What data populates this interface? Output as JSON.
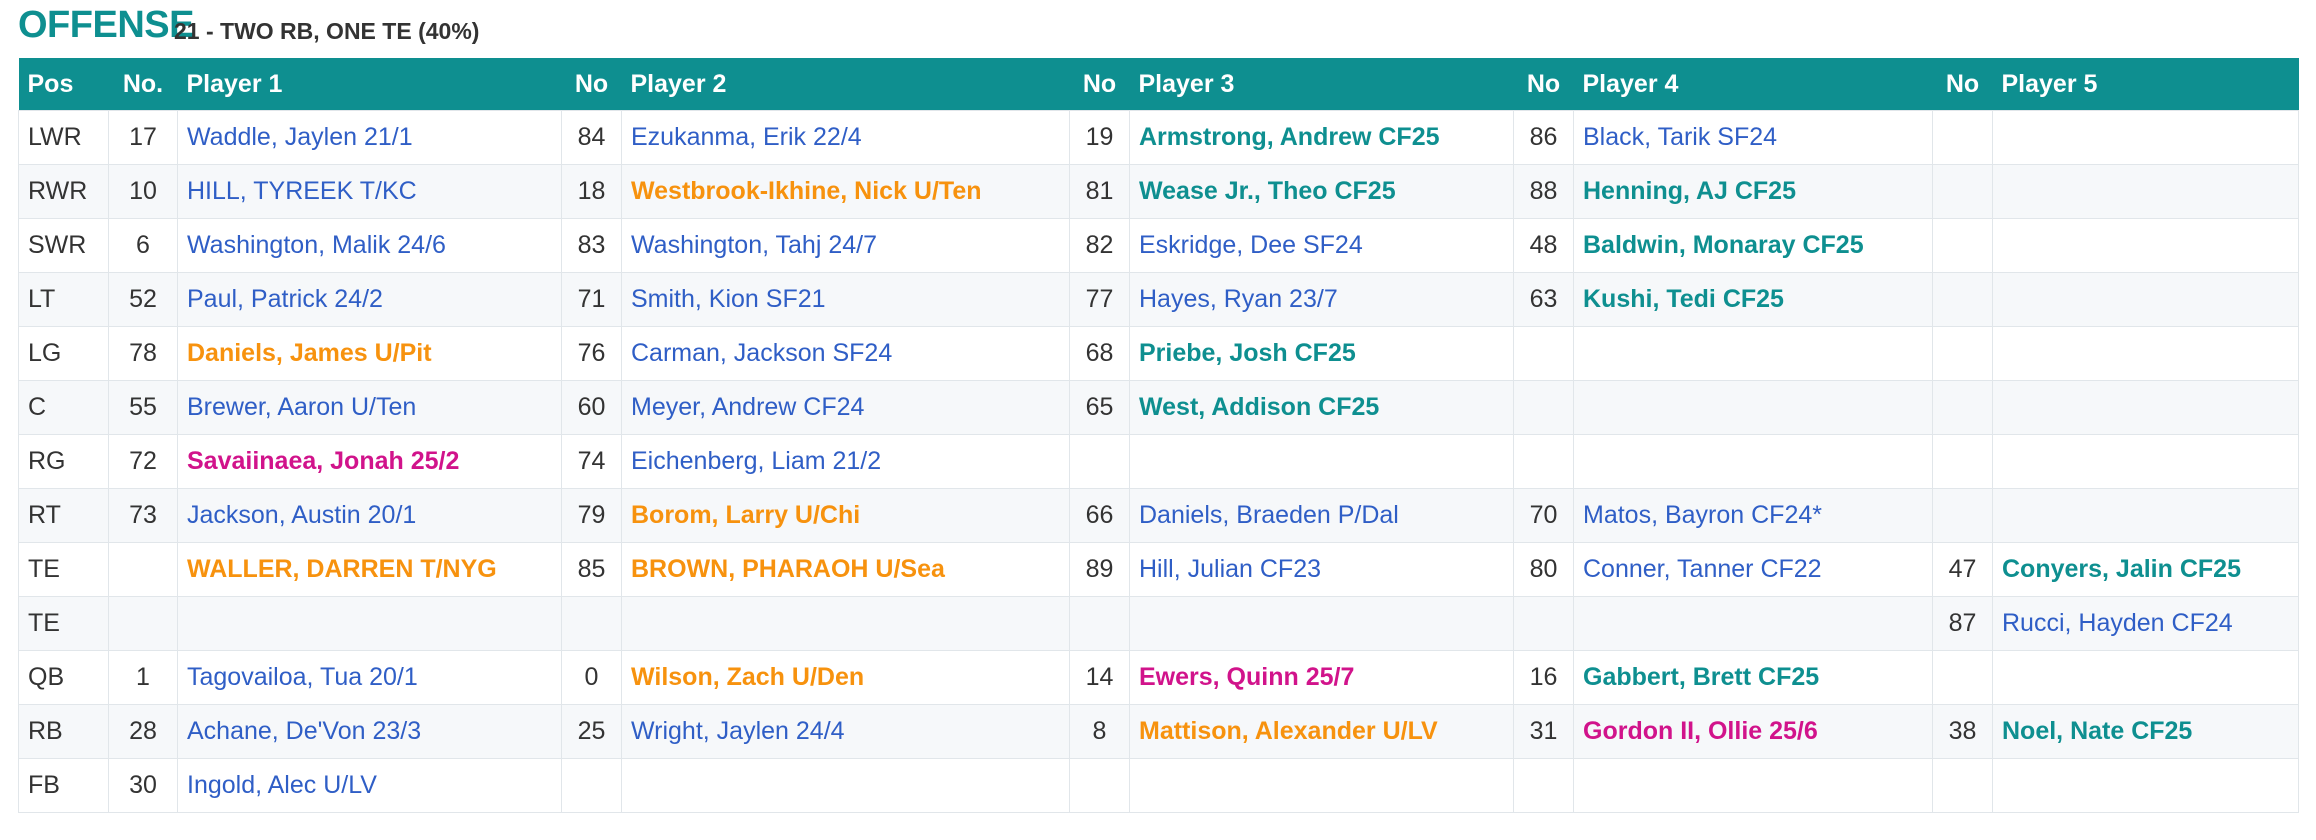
{
  "header": {
    "title": "OFFENSE",
    "formation": "21 - TWO RB, ONE TE (40%)"
  },
  "columns": [
    "Pos",
    "No.",
    "Player 1",
    "No",
    "Player 2",
    "No",
    "Player 3",
    "No",
    "Player 4",
    "No",
    "Player 5"
  ],
  "colors": {
    "header_bg": "#0e8f90",
    "default_player": "#2f5ec6",
    "teal": "#0e8f90",
    "orange": "#f7920e",
    "magenta": "#d1138b"
  },
  "rows": [
    {
      "pos": "LWR",
      "players": [
        {
          "no": "17",
          "name": "Waddle, Jaylen 21/1",
          "style": "default"
        },
        {
          "no": "84",
          "name": "Ezukanma, Erik 22/4",
          "style": "default"
        },
        {
          "no": "19",
          "name": "Armstrong, Andrew CF25",
          "style": "teal"
        },
        {
          "no": "86",
          "name": "Black, Tarik SF24",
          "style": "default"
        },
        {
          "no": "",
          "name": "",
          "style": "default"
        }
      ]
    },
    {
      "pos": "RWR",
      "players": [
        {
          "no": "10",
          "name": "HILL, TYREEK T/KC",
          "style": "default"
        },
        {
          "no": "18",
          "name": "Westbrook-Ikhine, Nick U/Ten",
          "style": "orange"
        },
        {
          "no": "81",
          "name": "Wease Jr., Theo CF25",
          "style": "teal"
        },
        {
          "no": "88",
          "name": "Henning, AJ CF25",
          "style": "teal"
        },
        {
          "no": "",
          "name": "",
          "style": "default"
        }
      ]
    },
    {
      "pos": "SWR",
      "players": [
        {
          "no": "6",
          "name": "Washington, Malik 24/6",
          "style": "default"
        },
        {
          "no": "83",
          "name": "Washington, Tahj 24/7",
          "style": "default"
        },
        {
          "no": "82",
          "name": "Eskridge, Dee SF24",
          "style": "default"
        },
        {
          "no": "48",
          "name": "Baldwin, Monaray CF25",
          "style": "teal"
        },
        {
          "no": "",
          "name": "",
          "style": "default"
        }
      ]
    },
    {
      "pos": "LT",
      "players": [
        {
          "no": "52",
          "name": "Paul, Patrick 24/2",
          "style": "default"
        },
        {
          "no": "71",
          "name": "Smith, Kion SF21",
          "style": "default"
        },
        {
          "no": "77",
          "name": "Hayes, Ryan 23/7",
          "style": "default"
        },
        {
          "no": "63",
          "name": "Kushi, Tedi CF25",
          "style": "teal"
        },
        {
          "no": "",
          "name": "",
          "style": "default"
        }
      ]
    },
    {
      "pos": "LG",
      "players": [
        {
          "no": "78",
          "name": "Daniels, James U/Pit",
          "style": "orange"
        },
        {
          "no": "76",
          "name": "Carman, Jackson SF24",
          "style": "default"
        },
        {
          "no": "68",
          "name": "Priebe, Josh CF25",
          "style": "teal"
        },
        {
          "no": "",
          "name": "",
          "style": "default"
        },
        {
          "no": "",
          "name": "",
          "style": "default"
        }
      ]
    },
    {
      "pos": "C",
      "players": [
        {
          "no": "55",
          "name": "Brewer, Aaron U/Ten",
          "style": "default"
        },
        {
          "no": "60",
          "name": "Meyer, Andrew CF24",
          "style": "default"
        },
        {
          "no": "65",
          "name": "West, Addison CF25",
          "style": "teal"
        },
        {
          "no": "",
          "name": "",
          "style": "default"
        },
        {
          "no": "",
          "name": "",
          "style": "default"
        }
      ]
    },
    {
      "pos": "RG",
      "players": [
        {
          "no": "72",
          "name": "Savaiinaea, Jonah 25/2",
          "style": "magenta"
        },
        {
          "no": "74",
          "name": "Eichenberg, Liam 21/2",
          "style": "default"
        },
        {
          "no": "",
          "name": "",
          "style": "default"
        },
        {
          "no": "",
          "name": "",
          "style": "default"
        },
        {
          "no": "",
          "name": "",
          "style": "default"
        }
      ]
    },
    {
      "pos": "RT",
      "players": [
        {
          "no": "73",
          "name": "Jackson, Austin 20/1",
          "style": "default"
        },
        {
          "no": "79",
          "name": "Borom, Larry U/Chi",
          "style": "orange"
        },
        {
          "no": "66",
          "name": "Daniels, Braeden P/Dal",
          "style": "default"
        },
        {
          "no": "70",
          "name": "Matos, Bayron CF24*",
          "style": "default"
        },
        {
          "no": "",
          "name": "",
          "style": "default"
        }
      ]
    },
    {
      "pos": "TE",
      "players": [
        {
          "no": "",
          "name": "WALLER, DARREN T/NYG",
          "style": "orange"
        },
        {
          "no": "85",
          "name": "BROWN, PHARAOH U/Sea",
          "style": "orange"
        },
        {
          "no": "89",
          "name": "Hill, Julian CF23",
          "style": "default"
        },
        {
          "no": "80",
          "name": "Conner, Tanner CF22",
          "style": "default"
        },
        {
          "no": "47",
          "name": "Conyers, Jalin CF25",
          "style": "teal"
        }
      ]
    },
    {
      "pos": "TE",
      "players": [
        {
          "no": "",
          "name": "",
          "style": "default"
        },
        {
          "no": "",
          "name": "",
          "style": "default"
        },
        {
          "no": "",
          "name": "",
          "style": "default"
        },
        {
          "no": "",
          "name": "",
          "style": "default"
        },
        {
          "no": "87",
          "name": "Rucci, Hayden CF24",
          "style": "default"
        }
      ]
    },
    {
      "pos": "QB",
      "players": [
        {
          "no": "1",
          "name": "Tagovailoa, Tua 20/1",
          "style": "default"
        },
        {
          "no": "0",
          "name": "Wilson, Zach U/Den",
          "style": "orange"
        },
        {
          "no": "14",
          "name": "Ewers, Quinn 25/7",
          "style": "magenta"
        },
        {
          "no": "16",
          "name": "Gabbert, Brett CF25",
          "style": "teal"
        },
        {
          "no": "",
          "name": "",
          "style": "default"
        }
      ]
    },
    {
      "pos": "RB",
      "players": [
        {
          "no": "28",
          "name": "Achane, De'Von 23/3",
          "style": "default"
        },
        {
          "no": "25",
          "name": "Wright, Jaylen 24/4",
          "style": "default"
        },
        {
          "no": "8",
          "name": "Mattison, Alexander U/LV",
          "style": "orange"
        },
        {
          "no": "31",
          "name": "Gordon II, Ollie 25/6",
          "style": "magenta"
        },
        {
          "no": "38",
          "name": "Noel, Nate CF25",
          "style": "teal"
        }
      ]
    },
    {
      "pos": "FB",
      "players": [
        {
          "no": "30",
          "name": "Ingold, Alec U/LV",
          "style": "default"
        },
        {
          "no": "",
          "name": "",
          "style": "default"
        },
        {
          "no": "",
          "name": "",
          "style": "default"
        },
        {
          "no": "",
          "name": "",
          "style": "default"
        },
        {
          "no": "",
          "name": "",
          "style": "default"
        }
      ]
    }
  ]
}
